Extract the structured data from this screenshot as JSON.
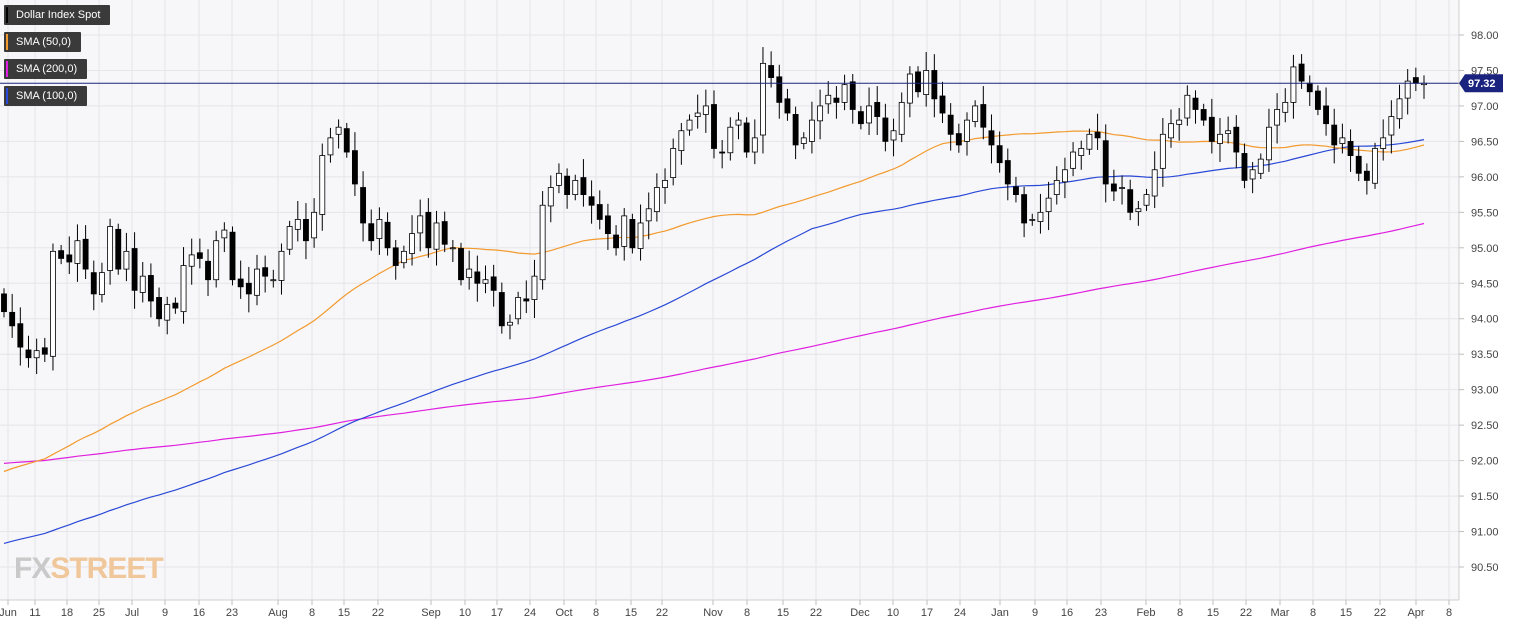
{
  "chart_data": {
    "type": "candlestick",
    "title": "",
    "ylim": [
      90.0,
      98.5
    ],
    "y_ticks": [
      "90.50",
      "91.00",
      "91.50",
      "92.00",
      "92.50",
      "93.00",
      "93.50",
      "94.00",
      "94.50",
      "95.00",
      "95.50",
      "96.00",
      "96.50",
      "97.00",
      "97.50",
      "98.00"
    ],
    "x_tick_labels": [
      "Jun",
      "11",
      "18",
      "25",
      "Jul",
      "9",
      "16",
      "23",
      "Aug",
      "8",
      "15",
      "22",
      "Sep",
      "10",
      "17",
      "24",
      "Oct",
      "8",
      "15",
      "22",
      "Nov",
      "8",
      "15",
      "22",
      "Dec",
      "10",
      "17",
      "24",
      "Jan",
      "9",
      "16",
      "23",
      "Feb",
      "8",
      "15",
      "22",
      "Mar",
      "8",
      "15",
      "22",
      "Apr",
      "8"
    ],
    "last_price": 97.32,
    "last_price_label": "97.32",
    "legend": [
      {
        "name": "Dollar Index Spot",
        "color": "#000000"
      },
      {
        "name": "SMA (50,0)",
        "color": "#f29a2e"
      },
      {
        "name": "SMA (200,0)",
        "color": "#e020e0"
      },
      {
        "name": "SMA (100,0)",
        "color": "#2a49d6"
      }
    ],
    "colors": {
      "sma50": "#f29a2e",
      "sma100": "#2a49d6",
      "sma200": "#e020e0",
      "price_line": "#1a237e",
      "up": "#ffffff",
      "down": "#000000"
    },
    "close": [
      94.1,
      93.9,
      93.6,
      93.45,
      93.55,
      93.5,
      94.95,
      94.85,
      94.8,
      95.1,
      94.7,
      94.35,
      94.65,
      95.3,
      94.7,
      94.95,
      94.4,
      94.6,
      94.25,
      94.0,
      94.2,
      94.15,
      94.75,
      94.9,
      94.85,
      94.55,
      95.1,
      95.25,
      94.55,
      94.45,
      94.35,
      94.7,
      94.6,
      94.55,
      94.95,
      95.3,
      95.4,
      95.1,
      95.5,
      96.3,
      96.55,
      96.7,
      96.35,
      95.9,
      95.35,
      95.1,
      95.4,
      95.0,
      94.75,
      94.95,
      95.2,
      95.45,
      95.0,
      95.35,
      95.05,
      95.0,
      94.55,
      94.7,
      94.5,
      94.55,
      94.4,
      93.9,
      93.95,
      94.3,
      94.25,
      94.6,
      95.6,
      95.85,
      96.05,
      95.75,
      95.95,
      95.75,
      95.6,
      95.4,
      95.2,
      95.0,
      95.45,
      95.0,
      95.35,
      95.55,
      95.85,
      95.95,
      96.4,
      96.65,
      96.8,
      96.9,
      97.0,
      96.4,
      96.35,
      96.7,
      96.8,
      96.35,
      96.55,
      97.6,
      97.4,
      97.05,
      96.9,
      96.45,
      96.55,
      96.8,
      97.0,
      97.15,
      97.05,
      97.3,
      96.95,
      96.75,
      97.0,
      96.85,
      96.5,
      96.65,
      97.05,
      97.45,
      97.2,
      97.5,
      97.1,
      96.9,
      96.6,
      96.45,
      96.8,
      97.0,
      96.7,
      96.45,
      96.2,
      95.9,
      95.75,
      95.35,
      95.4,
      95.5,
      95.7,
      95.95,
      96.1,
      96.35,
      96.4,
      96.6,
      96.55,
      95.9,
      95.8,
      95.85,
      95.5,
      95.55,
      95.75,
      96.1,
      96.6,
      96.75,
      96.8,
      97.15,
      96.95,
      96.8,
      96.5,
      96.6,
      96.65,
      96.35,
      95.95,
      96.1,
      96.25,
      96.7,
      96.95,
      97.05,
      97.55,
      97.35,
      97.2,
      96.95,
      96.75,
      96.45,
      96.55,
      96.3,
      96.05,
      95.95,
      96.4,
      96.55,
      96.85,
      97.1,
      97.35,
      97.32,
      97.32
    ]
  }
}
